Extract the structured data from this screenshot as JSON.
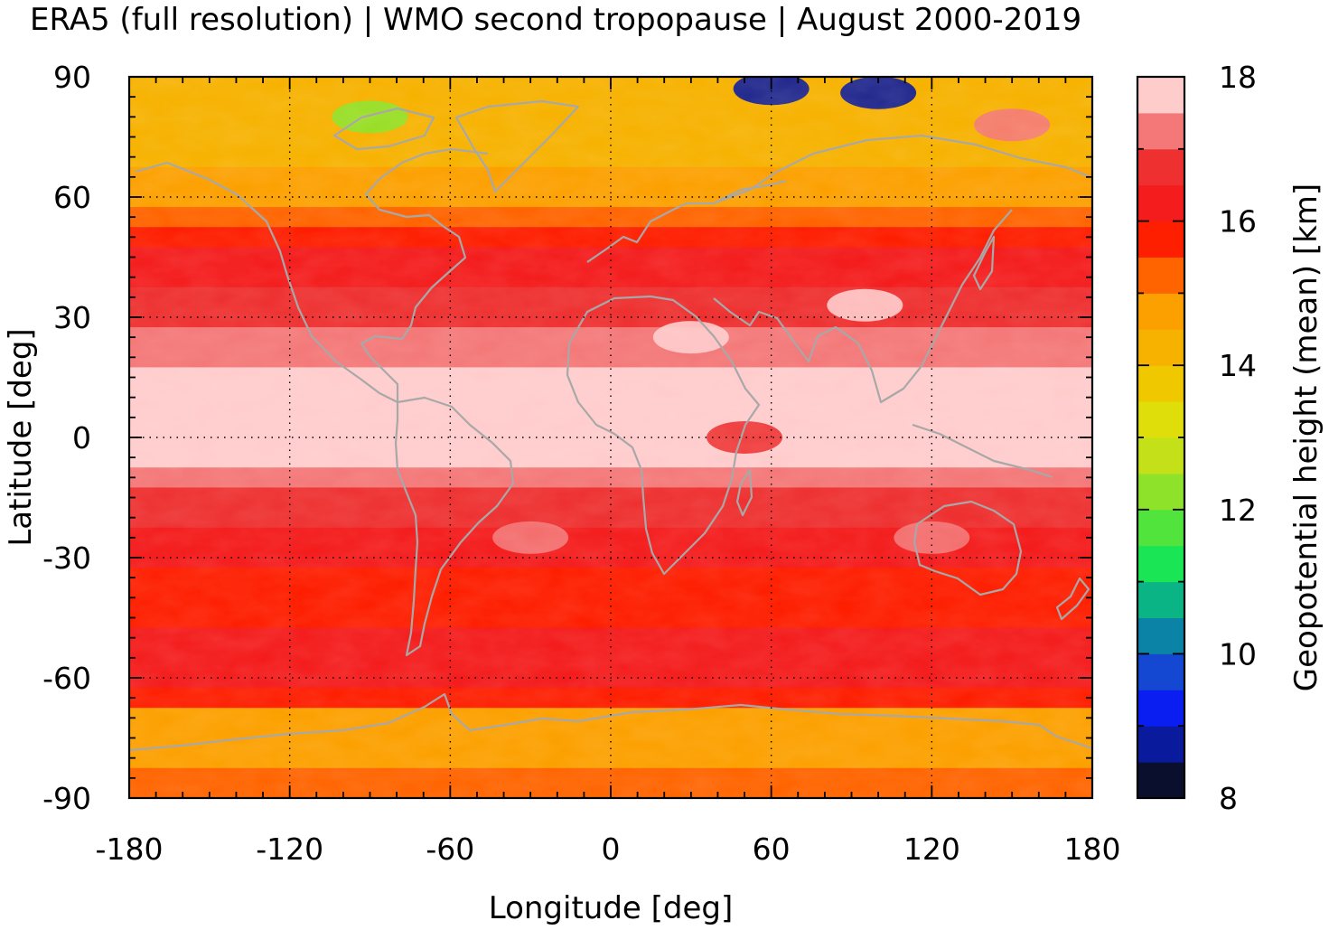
{
  "chart_data": {
    "type": "heatmap",
    "title": "ERA5 (full resolution) | WMO second tropopause | August 2000-2019",
    "xlabel": "Longitude [deg]",
    "ylabel": "Latitude [deg]",
    "colorbar_label": "Geopotential height (mean) [km]",
    "xlim": [
      -180,
      180
    ],
    "ylim": [
      -90,
      90
    ],
    "x_ticks": [
      "-180",
      "-120",
      "-60",
      "0",
      "60",
      "120",
      "180"
    ],
    "y_ticks": [
      "90",
      "60",
      "30",
      "0",
      "-30",
      "-60",
      "-90"
    ],
    "colorbar": {
      "range": [
        8,
        18
      ],
      "ticks": [
        "8",
        "10",
        "12",
        "14",
        "16",
        "18"
      ],
      "step_km": 0.5,
      "colors": [
        "#0a0f2e",
        "#0a1a9c",
        "#0a1ef2",
        "#1448d2",
        "#0a83a6",
        "#0ab485",
        "#1ae655",
        "#50e43c",
        "#8ee22a",
        "#c4e018",
        "#e0de0a",
        "#f0c800",
        "#f7b200",
        "#fca000",
        "#ff6400",
        "#fe1e00",
        "#f41c1c",
        "#ee3030",
        "#f47878",
        "#ffcccc"
      ]
    },
    "grid": true,
    "coastlines": true,
    "zonal_profile": {
      "lat": [
        90,
        85,
        80,
        75,
        70,
        65,
        60,
        55,
        50,
        45,
        40,
        35,
        30,
        25,
        20,
        15,
        10,
        5,
        0,
        -5,
        -10,
        -15,
        -20,
        -25,
        -30,
        -35,
        -40,
        -45,
        -50,
        -55,
        -60,
        -65,
        -70,
        -75,
        -80,
        -85,
        -90
      ],
      "height_km": [
        14.4,
        14.3,
        14.0,
        14.2,
        14.4,
        14.6,
        14.8,
        15.2,
        15.6,
        16.2,
        16.4,
        16.6,
        16.7,
        17.0,
        17.3,
        17.6,
        17.9,
        17.9,
        17.9,
        17.8,
        17.3,
        16.9,
        16.6,
        16.4,
        16.1,
        15.9,
        15.8,
        15.9,
        16.1,
        16.3,
        16.2,
        15.6,
        14.9,
        14.7,
        14.8,
        15.0,
        15.1
      ]
    },
    "anomalies": [
      {
        "lon": 60,
        "lat": 87,
        "height_km": 8.5
      },
      {
        "lon": 100,
        "lat": 86,
        "height_km": 8.8
      },
      {
        "lon": -90,
        "lat": 80,
        "height_km": 12.0
      },
      {
        "lon": 150,
        "lat": 78,
        "height_km": 17.2
      },
      {
        "lon": 95,
        "lat": 33,
        "height_km": 17.9
      },
      {
        "lon": 30,
        "lat": 25,
        "height_km": 17.9
      },
      {
        "lon": 50,
        "lat": 0,
        "height_km": 16.8
      },
      {
        "lon": -30,
        "lat": -25,
        "height_km": 17.1
      },
      {
        "lon": 120,
        "lat": -25,
        "height_km": 17.1
      }
    ]
  }
}
